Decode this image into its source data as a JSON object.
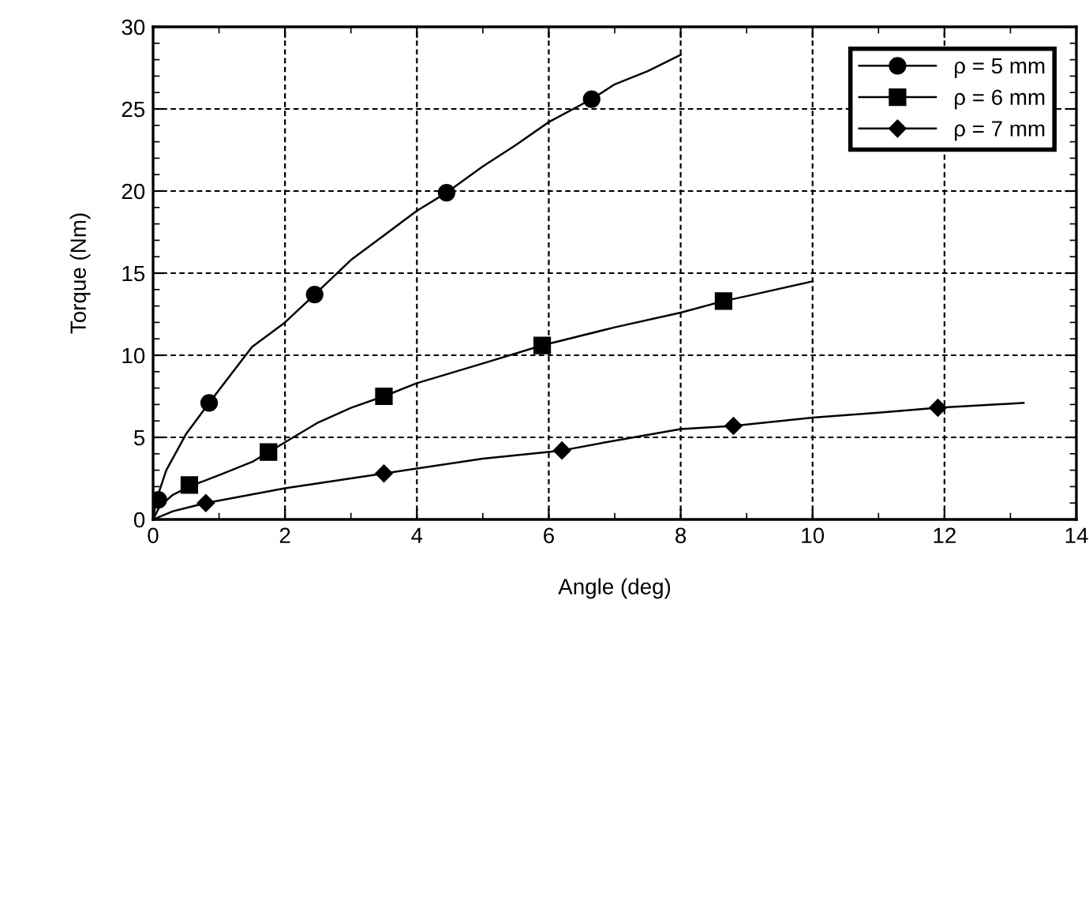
{
  "chart_data": {
    "type": "line",
    "xlabel": "Angle (deg)",
    "ylabel": "Torque (Nm)",
    "xlim": [
      0,
      14
    ],
    "ylim": [
      0,
      30
    ],
    "xticks": [
      0,
      2,
      4,
      6,
      8,
      10,
      12,
      14
    ],
    "yticks": [
      0,
      5,
      10,
      15,
      20,
      25,
      30
    ],
    "grid": true,
    "legend": "top right",
    "line_style": "solid",
    "series": [
      {
        "name": "ρ = 5 mm",
        "color": "#000000",
        "x": [
          0,
          0.05,
          0.2,
          0.5,
          0.85,
          1.5,
          2,
          2.45,
          3,
          3.5,
          4,
          4.45,
          5,
          5.5,
          6,
          6.65,
          7,
          7.5,
          8
        ],
        "values": [
          0,
          1.2,
          3,
          5.2,
          7.1,
          10.5,
          12,
          13.7,
          15.8,
          17.3,
          18.8,
          19.9,
          21.5,
          22.8,
          24.2,
          25.6,
          26.5,
          27.3,
          28.3
        ]
      },
      {
        "type": "scatter",
        "color": "#000000",
        "marker": "circle",
        "x": [
          0.08,
          0.85,
          2.45,
          4.45,
          6.65
        ],
        "values": [
          1.2,
          7.1,
          13.7,
          19.9,
          25.6
        ]
      },
      {
        "name": "ρ = 6 mm",
        "color": "#000000",
        "x": [
          0,
          0.1,
          0.3,
          0.55,
          1,
          1.5,
          1.75,
          2.5,
          3,
          3.5,
          4,
          5,
          5.9,
          7,
          8,
          8.65,
          9,
          10
        ],
        "values": [
          0,
          0.8,
          1.5,
          2.0,
          2.7,
          3.5,
          4.1,
          5.9,
          6.8,
          7.5,
          8.3,
          9.5,
          10.6,
          11.7,
          12.6,
          13.3,
          13.6,
          14.5
        ]
      },
      {
        "type": "scatter",
        "color": "#000000",
        "marker": "square",
        "x": [
          0.55,
          1.75,
          3.5,
          5.9,
          8.65
        ],
        "values": [
          2.1,
          4.1,
          7.5,
          10.6,
          13.3
        ]
      },
      {
        "name": "ρ = 7 mm",
        "color": "#000000",
        "x": [
          0,
          0.3,
          0.8,
          2,
          3.5,
          5,
          6.2,
          7,
          8,
          8.8,
          10,
          11,
          11.9,
          13.2
        ],
        "values": [
          0,
          0.5,
          1.0,
          1.9,
          2.8,
          3.7,
          4.2,
          4.8,
          5.5,
          5.7,
          6.2,
          6.5,
          6.8,
          7.1
        ]
      },
      {
        "type": "scatter",
        "color": "#000000",
        "marker": "diamond",
        "x": [
          0.8,
          3.5,
          6.2,
          8.8,
          11.9
        ],
        "values": [
          1.0,
          2.8,
          4.2,
          5.7,
          6.8
        ]
      }
    ]
  }
}
